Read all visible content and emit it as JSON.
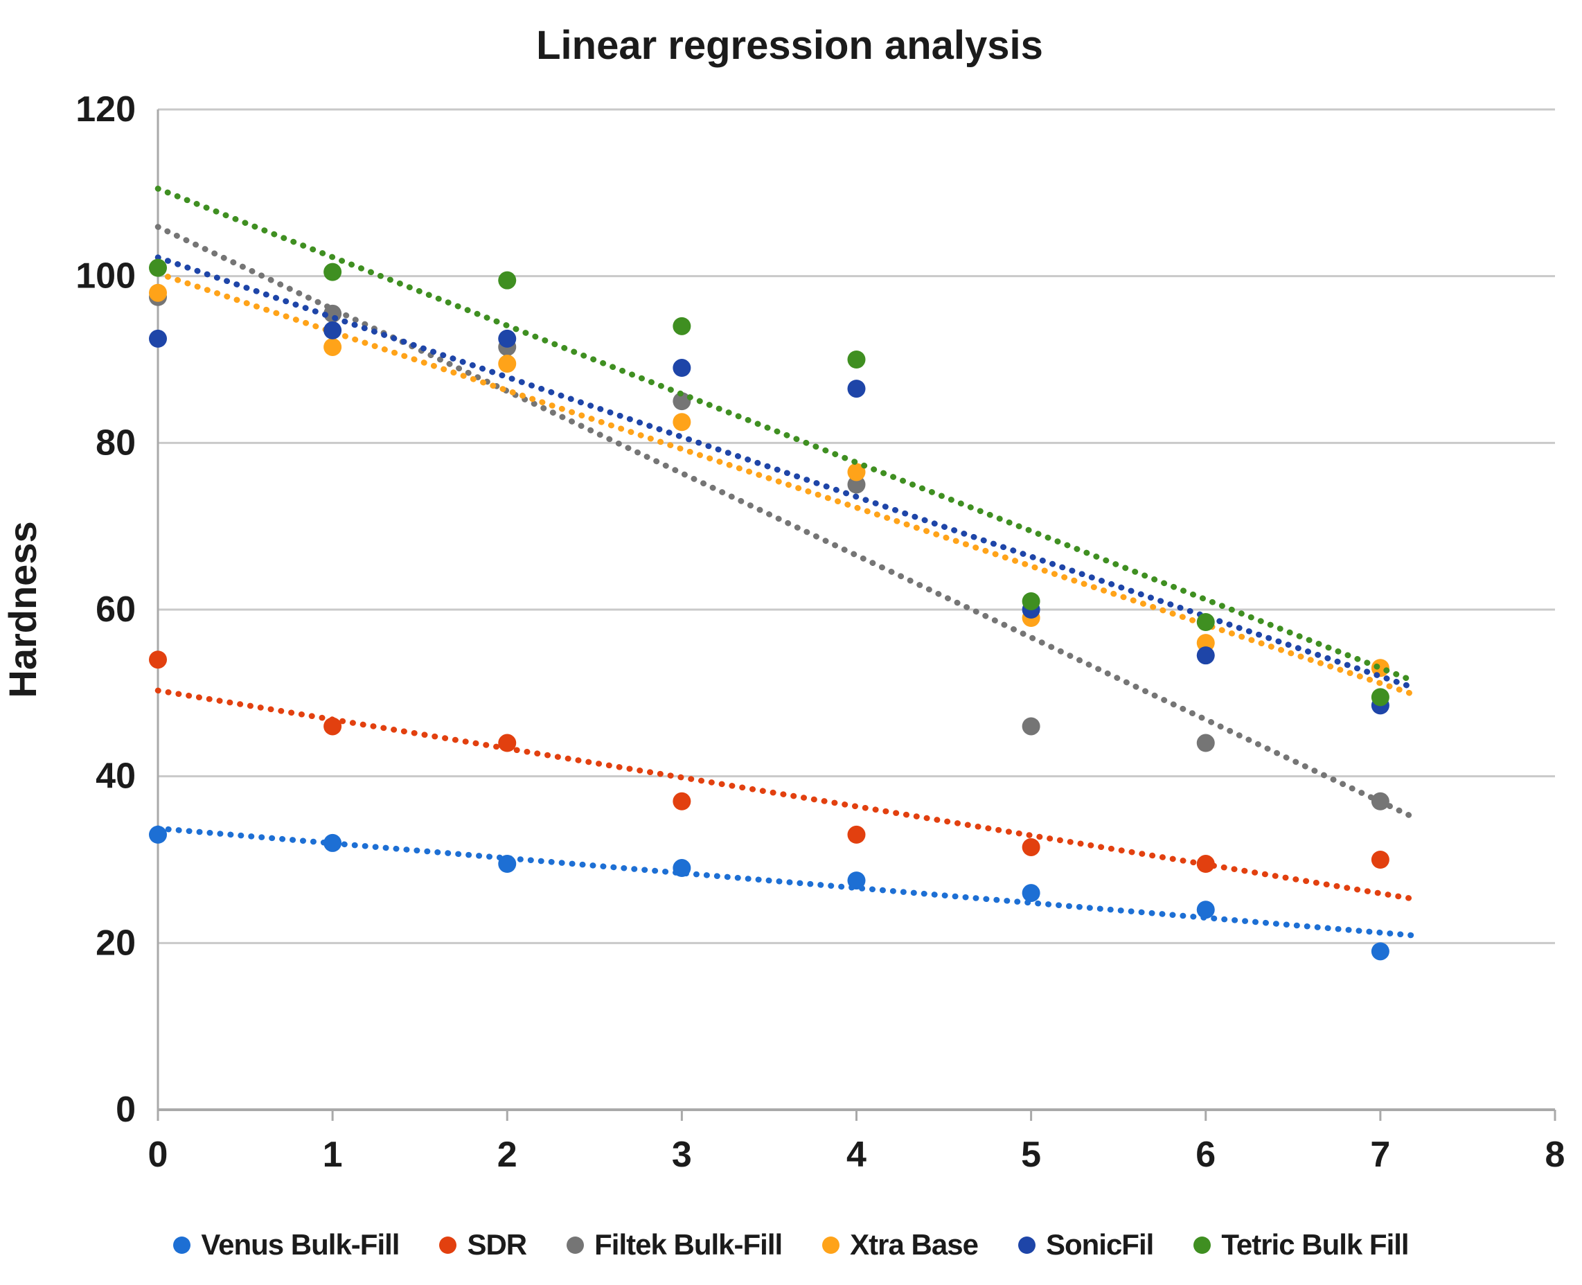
{
  "chart_data": {
    "type": "scatter",
    "title": "Linear regression analysis",
    "ylabel": "Hardness",
    "xlabel": "",
    "xlim": [
      0,
      8
    ],
    "ylim": [
      0,
      120
    ],
    "x_ticks": [
      0,
      1,
      2,
      3,
      4,
      5,
      6,
      7,
      8
    ],
    "y_ticks": [
      0,
      20,
      40,
      60,
      80,
      100,
      120
    ],
    "grid": "horizontal",
    "legend_position": "bottom",
    "x": [
      0,
      1,
      2,
      3,
      4,
      5,
      6,
      7
    ],
    "series": [
      {
        "name": "Venus Bulk-Fill",
        "color": "#1D6FD4",
        "values": [
          33,
          32,
          29.5,
          29,
          27.5,
          26,
          24,
          19
        ],
        "trend": "linear-dotted"
      },
      {
        "name": "SDR",
        "color": "#E2400F",
        "values": [
          54,
          46,
          44,
          37,
          33,
          31.5,
          29.5,
          30
        ],
        "trend": "linear-dotted"
      },
      {
        "name": "Filtek Bulk-Fill",
        "color": "#757575",
        "values": [
          97.5,
          95.5,
          91.5,
          85,
          75,
          46,
          44,
          37
        ],
        "trend": "linear-dotted"
      },
      {
        "name": "Xtra Base",
        "color": "#FFA319",
        "values": [
          98,
          91.5,
          89.5,
          82.5,
          76.5,
          59,
          56,
          53
        ],
        "trend": "linear-dotted"
      },
      {
        "name": "SonicFil",
        "color": "#1E45A8",
        "values": [
          92.5,
          93.5,
          92.5,
          89,
          86.5,
          60,
          54.5,
          48.5
        ],
        "trend": "linear-dotted"
      },
      {
        "name": "Tetric Bulk Fill",
        "color": "#3F8F21",
        "values": [
          101,
          100.5,
          99.5,
          94,
          90,
          61,
          58.5,
          49.5
        ],
        "trend": "linear-dotted"
      }
    ],
    "trendline_x_extent": [
      0,
      7.2
    ],
    "colors": {
      "gridline": "#c9c9c9",
      "axis": "#a9a9a9",
      "text": "#1b1b1b"
    }
  }
}
